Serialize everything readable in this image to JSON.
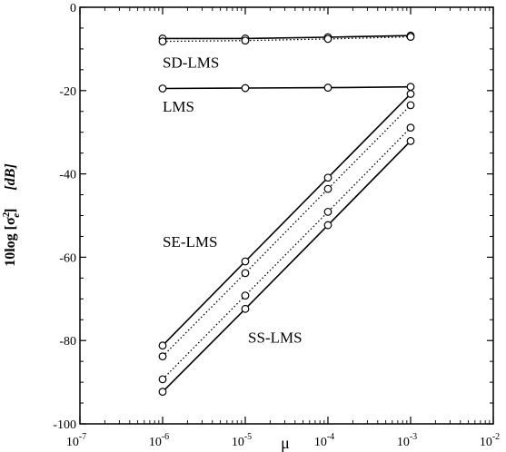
{
  "chart_data": {
    "type": "line",
    "xscale": "log",
    "xlim": [
      1e-07,
      0.01
    ],
    "ylim": [
      -100,
      0
    ],
    "x_ticks": [
      1e-07,
      1e-06,
      1e-05,
      0.0001,
      0.001,
      0.01
    ],
    "x_tick_labels": [
      {
        "base": "10",
        "exp": "-7"
      },
      {
        "base": "10",
        "exp": "-6"
      },
      {
        "base": "10",
        "exp": "-5"
      },
      {
        "base": "10",
        "exp": "-4"
      },
      {
        "base": "10",
        "exp": "-3"
      },
      {
        "base": "10",
        "exp": "-2"
      }
    ],
    "y_ticks": [
      0,
      -20,
      -40,
      -60,
      -80,
      -100
    ],
    "y_tick_labels": [
      "0",
      "-20",
      "-40",
      "-60",
      "-80",
      "-100"
    ],
    "xlabel": "μ",
    "ylabel": {
      "prefix": "10log [σ",
      "sup": "2",
      "sub": "e",
      "suffix": "]",
      "unit": "[dB]"
    },
    "grid": false,
    "annotations": [
      {
        "text": "SD-LMS",
        "x": 1e-06,
        "y": -14.5
      },
      {
        "text": "LMS",
        "x": 1e-06,
        "y": -25
      },
      {
        "text": "SE-LMS",
        "x": 1e-06,
        "y": -57.5
      },
      {
        "text": "SS-LMS",
        "x": 1.08e-05,
        "y": -80.5
      }
    ],
    "series": [
      {
        "x": [
          1e-06,
          1e-05,
          0.0001,
          0.001
        ],
        "y": [
          -7.5,
          -7.5,
          -7.2,
          -6.8
        ],
        "style": "solid"
      },
      {
        "x": [
          1e-06,
          1e-05,
          0.0001,
          0.001
        ],
        "y": [
          -8.2,
          -8.0,
          -7.6,
          -7.1
        ],
        "style": "dotted"
      },
      {
        "x": [
          1e-06,
          1e-05,
          0.0001,
          0.001
        ],
        "y": [
          -19.5,
          -19.4,
          -19.3,
          -19.1
        ],
        "style": "solid"
      },
      {
        "x": [
          1e-06,
          1e-05,
          0.0001,
          0.001
        ],
        "y": [
          -81.2,
          -61.0,
          -40.9,
          -20.8
        ],
        "style": "solid"
      },
      {
        "x": [
          1e-06,
          1e-05,
          0.0001,
          0.001
        ],
        "y": [
          -83.8,
          -63.8,
          -43.6,
          -23.5
        ],
        "style": "dotted"
      },
      {
        "x": [
          1e-06,
          1e-05,
          0.0001,
          0.001
        ],
        "y": [
          -89.3,
          -69.2,
          -49.1,
          -28.9
        ],
        "style": "dotted"
      },
      {
        "x": [
          1e-06,
          1e-05,
          0.0001,
          0.001
        ],
        "y": [
          -92.3,
          -72.4,
          -52.3,
          -32.1
        ],
        "style": "solid"
      }
    ]
  }
}
